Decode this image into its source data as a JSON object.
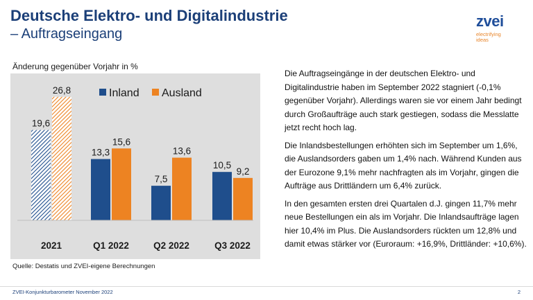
{
  "header": {
    "title": "Deutsche Elektro- und Digitalindustrie",
    "subtitle": "– Auftragseingang"
  },
  "logo": {
    "name": "zvei",
    "tagline_1": "electrifying",
    "tagline_2": "ideas"
  },
  "chart_data": {
    "type": "bar",
    "title": "Änderung gegenüber Vorjahr in %",
    "categories": [
      "2021",
      "Q1 2022",
      "Q2 2022",
      "Q3 2022"
    ],
    "series": [
      {
        "name": "Inland",
        "color": "#1f4e8c",
        "values": [
          19.6,
          13.3,
          7.5,
          10.5
        ],
        "labels": [
          "19,6",
          "13,3",
          "7,5",
          "10,5"
        ]
      },
      {
        "name": "Ausland",
        "color": "#ed8322",
        "values": [
          26.8,
          15.6,
          13.6,
          9.2
        ],
        "labels": [
          "26,8",
          "15,6",
          "13,6",
          "9,2"
        ]
      }
    ],
    "hatched_categories": [
      "2021"
    ],
    "ylim": [
      0,
      40
    ],
    "grid": false,
    "legend": "top-center"
  },
  "source": "Quelle: Destatis und ZVEI-eigene Berechnungen",
  "text": {
    "p1": "Die Auftragseingänge in der deutschen Elektro- und Digitalindustrie haben im September 2022 stagniert (-0,1% gegenüber Vorjahr). Allerdings waren sie vor einem Jahr bedingt durch Großaufträge auch stark gestiegen, sodass die Messlatte jetzt recht hoch lag.",
    "p2": "Die Inlandsbestellungen erhöhten sich im September um 1,6%, die Auslandsorders gaben um 1,4% nach. Während Kunden aus der Eurozone 9,1% mehr nachfragten als im Vorjahr, gingen die Aufträge aus Drittländern um 6,4% zurück.",
    "p3": "In den gesamten ersten drei Quartalen d.J. gingen 11,7% mehr neue Bestellungen ein als im Vorjahr. Die Inlandsaufträge lagen hier 10,4% im Plus. Die Auslandsorders rückten um 12,8% und damit etwas stärker vor (Euroraum: +16,9%, Drittländer: +10,6%)."
  },
  "footer": {
    "left": "ZVEI-Konjunkturbarometer November 2022",
    "page": "2"
  }
}
